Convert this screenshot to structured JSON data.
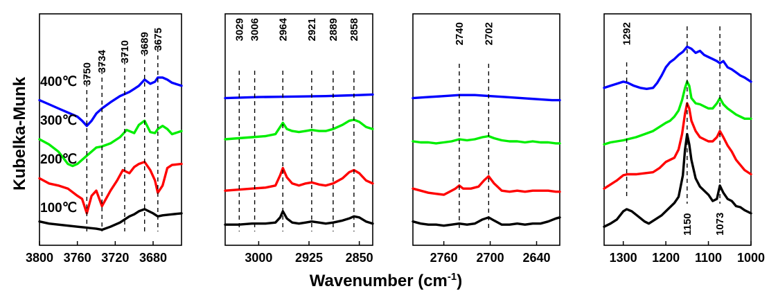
{
  "figure": {
    "ylabel": "Kubelka-Munk",
    "xlabel": "Wavenumber (cm",
    "xlabel_sup": "-1",
    "xlabel_end": ")"
  },
  "temperatures": [
    "100℃",
    "200℃",
    "300℃",
    "400℃"
  ],
  "colors": {
    "100℃": "#000000",
    "200℃": "#ff0000",
    "300℃": "#00ee00",
    "400℃": "#0000ff"
  },
  "chart_data": [
    {
      "type": "line",
      "title": "",
      "xlim": [
        3800,
        3650
      ],
      "xticks": [
        3800,
        3760,
        3720,
        3680
      ],
      "xtick_labels": [
        "3800",
        "3760",
        "3720",
        "3680"
      ],
      "peaks": [
        3750,
        3734,
        3710,
        3689,
        3675
      ],
      "series": [
        {
          "name": "100℃",
          "x": [
            3800,
            3790,
            3780,
            3770,
            3760,
            3750,
            3740,
            3734,
            3725,
            3715,
            3705,
            3700,
            3695,
            3689,
            3680,
            3675,
            3670,
            3660,
            3650
          ],
          "y": [
            0.1,
            0.08,
            0.07,
            0.06,
            0.05,
            0.04,
            0.03,
            0.02,
            0.05,
            0.09,
            0.15,
            0.17,
            0.2,
            0.22,
            0.18,
            0.15,
            0.16,
            0.17,
            0.18
          ]
        },
        {
          "name": "200℃",
          "x": [
            3800,
            3790,
            3780,
            3770,
            3760,
            3755,
            3750,
            3745,
            3740,
            3734,
            3725,
            3718,
            3712,
            3705,
            3700,
            3695,
            3689,
            3683,
            3678,
            3675,
            3670,
            3665,
            3660,
            3650
          ],
          "y": [
            0.52,
            0.47,
            0.45,
            0.42,
            0.35,
            0.32,
            0.18,
            0.35,
            0.4,
            0.25,
            0.4,
            0.5,
            0.6,
            0.57,
            0.63,
            0.66,
            0.68,
            0.6,
            0.5,
            0.38,
            0.45,
            0.62,
            0.65,
            0.66
          ]
        },
        {
          "name": "300℃",
          "x": [
            3800,
            3790,
            3780,
            3775,
            3770,
            3765,
            3760,
            3750,
            3740,
            3734,
            3725,
            3715,
            3712,
            3708,
            3700,
            3695,
            3689,
            3683,
            3678,
            3675,
            3670,
            3665,
            3660,
            3650
          ],
          "y": [
            0.9,
            0.85,
            0.78,
            0.72,
            0.66,
            0.64,
            0.66,
            0.74,
            0.82,
            0.83,
            0.86,
            0.92,
            0.95,
            0.99,
            0.96,
            1.04,
            1.08,
            0.97,
            0.96,
            1.0,
            1.03,
            1.0,
            0.95,
            0.98
          ]
        },
        {
          "name": "400℃",
          "x": [
            3800,
            3790,
            3780,
            3770,
            3760,
            3755,
            3750,
            3745,
            3740,
            3734,
            3725,
            3715,
            3705,
            3700,
            3695,
            3689,
            3683,
            3678,
            3675,
            3670,
            3665,
            3660,
            3650
          ],
          "y": [
            1.28,
            1.24,
            1.2,
            1.16,
            1.12,
            1.08,
            1.03,
            1.08,
            1.15,
            1.2,
            1.26,
            1.32,
            1.36,
            1.39,
            1.42,
            1.48,
            1.44,
            1.46,
            1.5,
            1.5,
            1.48,
            1.45,
            1.42
          ]
        }
      ]
    },
    {
      "type": "line",
      "title": "",
      "xlim": [
        3050,
        2830
      ],
      "xticks": [
        3000,
        2925,
        2850
      ],
      "xtick_labels": [
        "3000",
        "2925",
        "2850"
      ],
      "peaks": [
        3029,
        3006,
        2964,
        2921,
        2889,
        2858
      ],
      "series": [
        {
          "name": "100℃",
          "x": [
            3050,
            3030,
            3010,
            2990,
            2975,
            2968,
            2964,
            2958,
            2950,
            2940,
            2930,
            2921,
            2910,
            2900,
            2889,
            2875,
            2865,
            2858,
            2850,
            2840,
            2830
          ],
          "y": [
            0.07,
            0.07,
            0.08,
            0.08,
            0.09,
            0.14,
            0.2,
            0.13,
            0.09,
            0.08,
            0.09,
            0.1,
            0.09,
            0.08,
            0.09,
            0.11,
            0.13,
            0.15,
            0.14,
            0.1,
            0.08
          ]
        },
        {
          "name": "200℃",
          "x": [
            3050,
            3030,
            3010,
            2990,
            2975,
            2968,
            2964,
            2958,
            2950,
            2940,
            2930,
            2921,
            2910,
            2900,
            2889,
            2875,
            2865,
            2858,
            2850,
            2840,
            2830
          ],
          "y": [
            0.4,
            0.41,
            0.42,
            0.43,
            0.45,
            0.55,
            0.62,
            0.53,
            0.47,
            0.45,
            0.47,
            0.48,
            0.46,
            0.45,
            0.47,
            0.52,
            0.58,
            0.6,
            0.57,
            0.5,
            0.47
          ]
        },
        {
          "name": "300℃",
          "x": [
            3050,
            3030,
            3010,
            2990,
            2975,
            2968,
            2964,
            2958,
            2950,
            2940,
            2930,
            2921,
            2910,
            2900,
            2889,
            2875,
            2865,
            2858,
            2850,
            2840,
            2830
          ],
          "y": [
            0.9,
            0.91,
            0.92,
            0.93,
            0.95,
            1.02,
            1.06,
            1.0,
            0.98,
            0.97,
            0.98,
            0.99,
            0.98,
            0.98,
            1.0,
            1.04,
            1.08,
            1.09,
            1.07,
            1.02,
            1.0
          ]
        },
        {
          "name": "400℃",
          "x": [
            3050,
            3000,
            2950,
            2900,
            2850,
            2830
          ],
          "y": [
            1.3,
            1.31,
            1.315,
            1.32,
            1.33,
            1.335
          ]
        }
      ]
    },
    {
      "type": "line",
      "title": "",
      "xlim": [
        2800,
        2610
      ],
      "xticks": [
        2760,
        2700,
        2640
      ],
      "xtick_labels": [
        "2760",
        "2700",
        "2640"
      ],
      "peaks": [
        2740,
        2702
      ],
      "series": [
        {
          "name": "100℃",
          "x": [
            2800,
            2790,
            2780,
            2770,
            2760,
            2750,
            2740,
            2730,
            2720,
            2710,
            2702,
            2695,
            2685,
            2675,
            2665,
            2655,
            2645,
            2635,
            2625,
            2615,
            2610
          ],
          "y": [
            0.1,
            0.08,
            0.07,
            0.07,
            0.06,
            0.07,
            0.08,
            0.07,
            0.08,
            0.12,
            0.14,
            0.11,
            0.07,
            0.07,
            0.08,
            0.07,
            0.08,
            0.08,
            0.1,
            0.13,
            0.14
          ]
        },
        {
          "name": "200℃",
          "x": [
            2800,
            2790,
            2780,
            2770,
            2760,
            2750,
            2745,
            2740,
            2735,
            2725,
            2715,
            2708,
            2702,
            2695,
            2685,
            2675,
            2665,
            2655,
            2645,
            2635,
            2625,
            2615,
            2610
          ],
          "y": [
            0.42,
            0.4,
            0.38,
            0.37,
            0.36,
            0.4,
            0.42,
            0.45,
            0.42,
            0.42,
            0.44,
            0.5,
            0.54,
            0.47,
            0.4,
            0.39,
            0.4,
            0.39,
            0.4,
            0.4,
            0.4,
            0.39,
            0.39
          ]
        },
        {
          "name": "300℃",
          "x": [
            2800,
            2790,
            2780,
            2770,
            2760,
            2750,
            2740,
            2730,
            2720,
            2710,
            2702,
            2695,
            2685,
            2675,
            2665,
            2655,
            2645,
            2635,
            2625,
            2615,
            2610
          ],
          "y": [
            0.88,
            0.87,
            0.87,
            0.86,
            0.87,
            0.88,
            0.9,
            0.89,
            0.9,
            0.92,
            0.93,
            0.91,
            0.89,
            0.88,
            0.88,
            0.87,
            0.88,
            0.87,
            0.87,
            0.86,
            0.86
          ]
        },
        {
          "name": "400℃",
          "x": [
            2800,
            2780,
            2760,
            2740,
            2720,
            2700,
            2680,
            2660,
            2640,
            2620,
            2610
          ],
          "y": [
            1.3,
            1.31,
            1.32,
            1.33,
            1.33,
            1.32,
            1.31,
            1.3,
            1.29,
            1.28,
            1.28
          ]
        }
      ]
    },
    {
      "type": "line",
      "title": "",
      "xlim": [
        1345,
        1000
      ],
      "xticks": [
        1300,
        1200,
        1100,
        1000
      ],
      "xtick_labels": [
        "1300",
        "1200",
        "1100",
        "1000"
      ],
      "peaks": [
        1292,
        1150,
        1073
      ],
      "series": [
        {
          "name": "100℃",
          "x": [
            1345,
            1330,
            1315,
            1300,
            1292,
            1280,
            1265,
            1250,
            1240,
            1225,
            1210,
            1195,
            1180,
            1170,
            1160,
            1155,
            1150,
            1145,
            1140,
            1130,
            1120,
            1110,
            1100,
            1090,
            1080,
            1073,
            1065,
            1055,
            1045,
            1035,
            1025,
            1015,
            1000
          ],
          "y": [
            0.05,
            0.08,
            0.12,
            0.2,
            0.22,
            0.2,
            0.15,
            0.1,
            0.08,
            0.12,
            0.16,
            0.22,
            0.28,
            0.34,
            0.55,
            0.8,
            0.95,
            0.85,
            0.7,
            0.52,
            0.44,
            0.4,
            0.36,
            0.3,
            0.32,
            0.45,
            0.38,
            0.32,
            0.3,
            0.25,
            0.24,
            0.21,
            0.18
          ]
        },
        {
          "name": "200℃",
          "x": [
            1345,
            1330,
            1315,
            1300,
            1290,
            1270,
            1250,
            1230,
            1215,
            1200,
            1190,
            1180,
            1170,
            1162,
            1155,
            1150,
            1145,
            1140,
            1130,
            1120,
            1110,
            1100,
            1090,
            1080,
            1073,
            1065,
            1055,
            1045,
            1035,
            1025,
            1015,
            1000
          ],
          "y": [
            0.42,
            0.46,
            0.5,
            0.55,
            0.56,
            0.56,
            0.57,
            0.58,
            0.62,
            0.68,
            0.7,
            0.72,
            0.8,
            0.95,
            1.15,
            1.25,
            1.2,
            1.08,
            0.98,
            0.92,
            0.9,
            0.88,
            0.88,
            0.92,
            0.98,
            0.92,
            0.84,
            0.78,
            0.7,
            0.65,
            0.6,
            0.56
          ]
        },
        {
          "name": "300℃",
          "x": [
            1345,
            1330,
            1315,
            1300,
            1290,
            1270,
            1250,
            1230,
            1215,
            1200,
            1190,
            1180,
            1170,
            1162,
            1155,
            1150,
            1145,
            1140,
            1130,
            1120,
            1110,
            1100,
            1090,
            1080,
            1073,
            1065,
            1055,
            1045,
            1035,
            1025,
            1015,
            1000
          ],
          "y": [
            0.85,
            0.87,
            0.88,
            0.89,
            0.9,
            0.92,
            0.95,
            0.98,
            1.02,
            1.06,
            1.08,
            1.12,
            1.18,
            1.28,
            1.4,
            1.46,
            1.42,
            1.3,
            1.25,
            1.24,
            1.22,
            1.2,
            1.2,
            1.25,
            1.3,
            1.24,
            1.2,
            1.17,
            1.14,
            1.12,
            1.1,
            1.1
          ]
        },
        {
          "name": "400℃",
          "x": [
            1345,
            1330,
            1315,
            1300,
            1290,
            1275,
            1260,
            1245,
            1230,
            1220,
            1210,
            1200,
            1190,
            1180,
            1170,
            1160,
            1150,
            1140,
            1130,
            1120,
            1110,
            1100,
            1090,
            1080,
            1073,
            1065,
            1055,
            1045,
            1035,
            1025,
            1015,
            1000
          ],
          "y": [
            1.4,
            1.42,
            1.44,
            1.46,
            1.45,
            1.42,
            1.4,
            1.39,
            1.4,
            1.45,
            1.52,
            1.6,
            1.65,
            1.68,
            1.72,
            1.75,
            1.8,
            1.78,
            1.74,
            1.76,
            1.72,
            1.7,
            1.68,
            1.66,
            1.64,
            1.66,
            1.6,
            1.58,
            1.55,
            1.52,
            1.5,
            1.46
          ]
        }
      ]
    }
  ]
}
